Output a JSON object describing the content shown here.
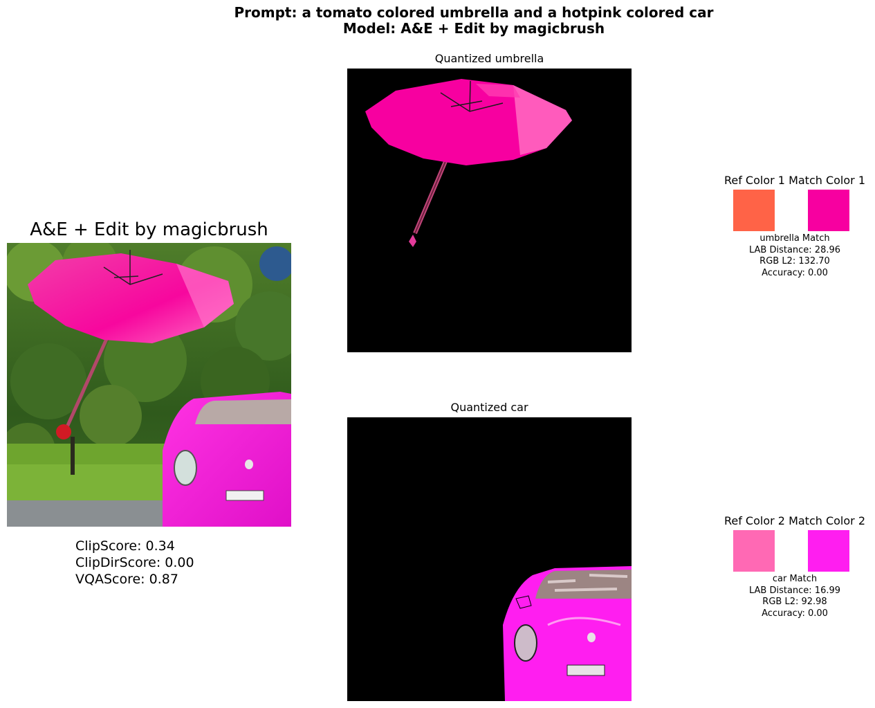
{
  "header": {
    "prompt_line": "Prompt: a tomato colored umbrella and a hotpink colored car",
    "model_line": "Model: A&E + Edit by magicbrush"
  },
  "main_image": {
    "title": "A&E + Edit by magicbrush",
    "scores": {
      "clip": "ClipScore: 0.34",
      "clipdir": "ClipDirScore: 0.00",
      "vqa": "VQAScore: 0.87"
    }
  },
  "panels": {
    "umbrella": {
      "title": "Quantized umbrella"
    },
    "car": {
      "title": "Quantized car"
    }
  },
  "matches": [
    {
      "ref_label": "Ref Color 1",
      "match_label": "Match Color 1",
      "ref_color": "#FF6347",
      "match_color": "#F700A0",
      "lines": [
        "umbrella Match",
        "LAB Distance: 28.96",
        "RGB L2: 132.70",
        "Accuracy: 0.00"
      ]
    },
    {
      "ref_label": "Ref Color 2",
      "match_label": "Match Color 2",
      "ref_color": "#FF69B4",
      "match_color": "#FF1EF0",
      "lines": [
        "car Match",
        "LAB Distance: 16.99",
        "RGB L2: 92.98",
        "Accuracy: 0.00"
      ]
    }
  ]
}
